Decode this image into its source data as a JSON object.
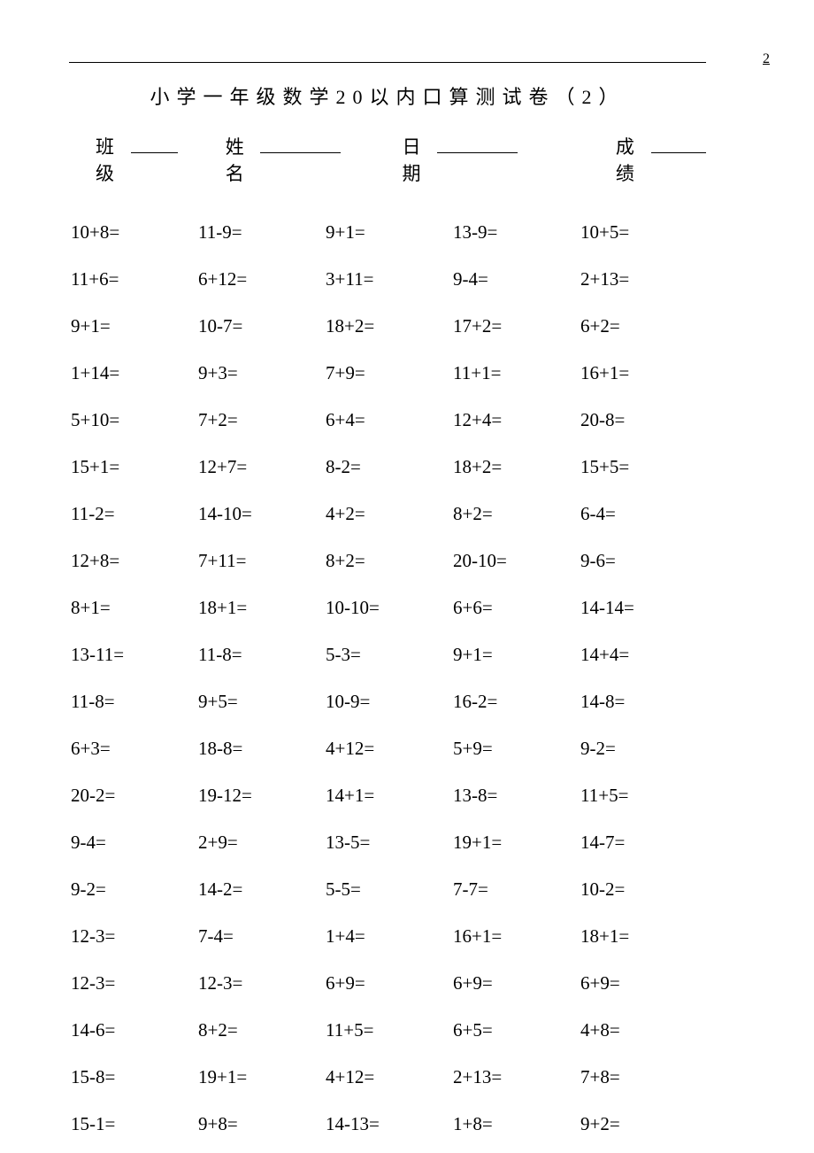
{
  "page_number": "2",
  "title": "小学一年级数学20以内口算测试卷（2）",
  "header": {
    "class_label": "班级",
    "name_label": "姓名",
    "date_label": "日期",
    "score_label": "成绩"
  },
  "blank_widths": {
    "class": 56,
    "name": 96,
    "date": 96,
    "score": 66
  },
  "header_gaps": [
    36,
    52,
    96
  ],
  "problems": [
    [
      "10+8=",
      "11-9=",
      "9+1=",
      "13-9=",
      "10+5="
    ],
    [
      "11+6=",
      "6+12=",
      "3+11=",
      "9-4=",
      "2+13="
    ],
    [
      "9+1=",
      "10-7=",
      "18+2=",
      "17+2=",
      "6+2="
    ],
    [
      "1+14=",
      "9+3=",
      "7+9=",
      "11+1=",
      "16+1="
    ],
    [
      "5+10=",
      "7+2=",
      "6+4=",
      "12+4=",
      "20-8="
    ],
    [
      "15+1=",
      "12+7=",
      "8-2=",
      "18+2=",
      "15+5="
    ],
    [
      "11-2=",
      "14-10=",
      "4+2=",
      "8+2=",
      "6-4="
    ],
    [
      "12+8=",
      "7+11=",
      "8+2=",
      "20-10=",
      "9-6="
    ],
    [
      "8+1=",
      "18+1=",
      "10-10=",
      "6+6=",
      "14-14="
    ],
    [
      "13-11=",
      "11-8=",
      "5-3=",
      "9+1=",
      "14+4="
    ],
    [
      "11-8=",
      "9+5=",
      "10-9=",
      "16-2=",
      "14-8="
    ],
    [
      "6+3=",
      "18-8=",
      "4+12=",
      "5+9=",
      "9-2="
    ],
    [
      "20-2=",
      "19-12=",
      "14+1=",
      "13-8=",
      "11+5="
    ],
    [
      "9-4=",
      "2+9=",
      "13-5=",
      "19+1=",
      "14-7="
    ],
    [
      "9-2=",
      "14-2=",
      "5-5=",
      "7-7=",
      "10-2="
    ],
    [
      "12-3=",
      "7-4=",
      "1+4=",
      "16+1=",
      "18+1="
    ],
    [
      "12-3=",
      "12-3=",
      "6+9=",
      "6+9=",
      "6+9="
    ],
    [
      "14-6=",
      "8+2=",
      "11+5=",
      "6+5=",
      "4+8="
    ],
    [
      "15-8=",
      "19+1=",
      "4+12=",
      "2+13=",
      "7+8="
    ],
    [
      "15-1=",
      "9+8=",
      "14-13=",
      "1+8=",
      "9+2="
    ]
  ],
  "styling": {
    "background_color": "#ffffff",
    "text_color": "#000000",
    "title_fontsize": 22,
    "header_fontsize": 21,
    "cell_fontsize": 21,
    "font_family_cjk": "SimSun",
    "font_family_latin": "Times New Roman",
    "columns": 5,
    "rows": 20,
    "row_gap": 28,
    "title_letter_spacing": 8
  }
}
